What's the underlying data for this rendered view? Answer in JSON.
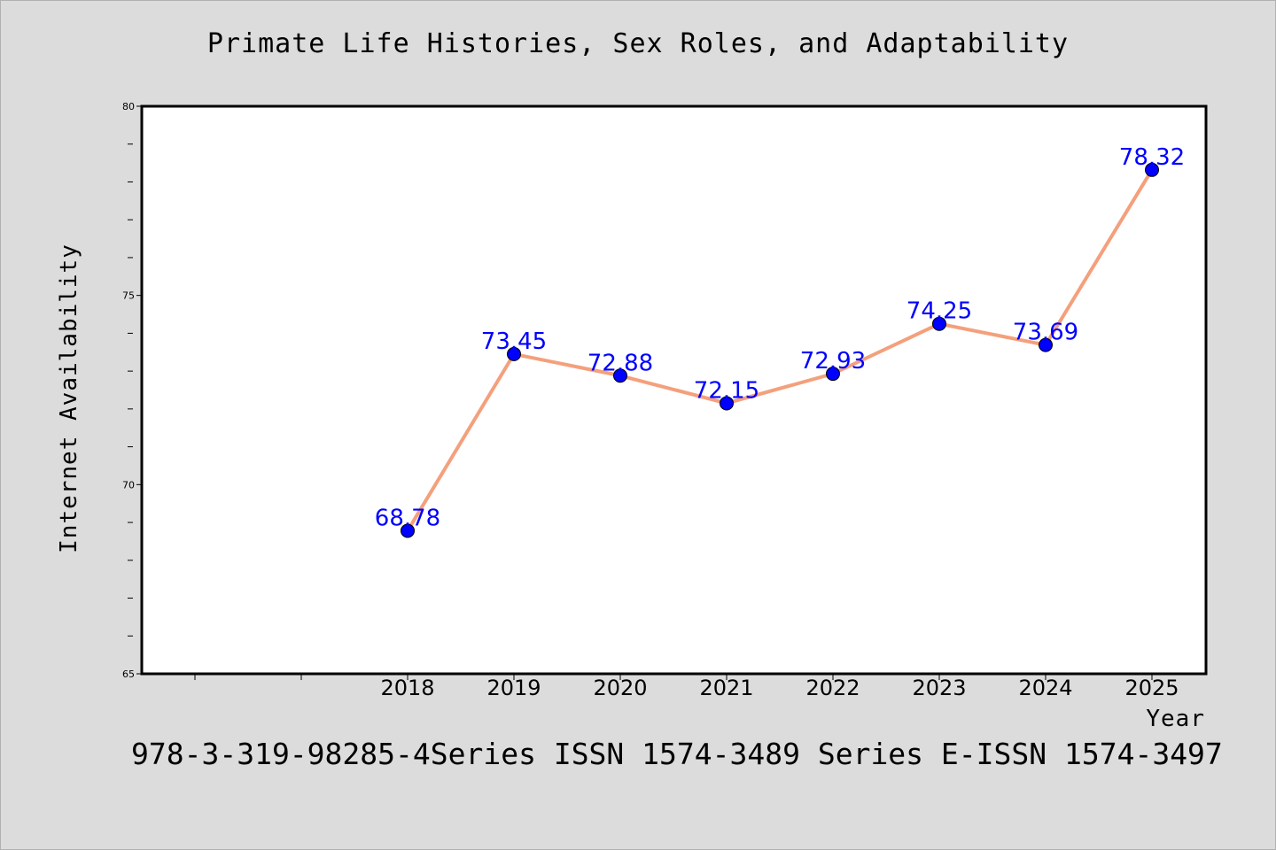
{
  "chart_data": {
    "type": "line",
    "title": "Primate Life Histories, Sex Roles, and Adaptability",
    "xlabel": "Year",
    "ylabel": "Internet Availability",
    "categories": [
      "2018",
      "2019",
      "2020",
      "2021",
      "2022",
      "2023",
      "2024",
      "2025"
    ],
    "series": [
      {
        "values": [
          68.78,
          73.45,
          72.88,
          72.15,
          72.93,
          74.25,
          73.69,
          78.32
        ],
        "data_labels": [
          "68.78",
          "73.45",
          "72.88",
          "72.15",
          "72.93",
          "74.25",
          "73.69",
          "78.32"
        ]
      }
    ],
    "ylim": [
      65,
      80
    ],
    "yticks": [
      "65",
      "70",
      "75",
      "80"
    ],
    "grid": false,
    "legend": "none",
    "colors": {
      "line": "#f4a07c",
      "marker": "#0000ff",
      "data_label": "#0000ff",
      "background": "#dcdcdc",
      "plot_area": "#ffffff"
    }
  },
  "footer": "978-3-319-98285-4Series ISSN 1574-3489 Series E-ISSN 1574-3497"
}
